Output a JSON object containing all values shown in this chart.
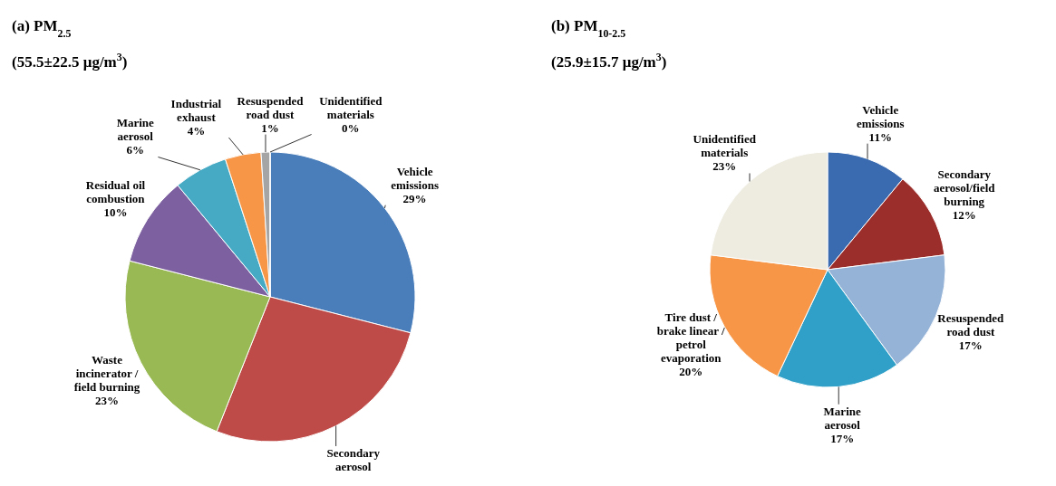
{
  "chart_data": [
    {
      "type": "pie",
      "title": "(a) PM$_{2.5}$",
      "subtitle": "(55.5±22.5 μg/m$^{3}$)",
      "categories": [
        "Vehicle emissions",
        "Secondary aerosol",
        "Waste incinerator / field burning",
        "Residual oil combustion",
        "Marine aerosol",
        "Industrial exhaust",
        "Resuspended road dust",
        "Unidentified materials"
      ],
      "values": [
        29,
        27,
        23,
        10,
        6,
        4,
        1,
        0
      ],
      "colors": [
        "#4a7ebb",
        "#be4b48",
        "#98b954",
        "#7d60a0",
        "#46aac5",
        "#f79646",
        "#a5a5a5",
        "#d9d9d9"
      ],
      "value_labels": [
        "29%",
        null,
        "23%",
        "10%",
        "6%",
        "4%",
        "1%",
        "0%"
      ]
    },
    {
      "type": "pie",
      "title": "(b) PM$_{10-2.5}$",
      "subtitle": "(25.9±15.7 μg/m$^{3}$)",
      "categories": [
        "Vehicle emissions",
        "Secondary aerosol/field burning",
        "Resuspended road dust",
        "Marine aerosol",
        "Tire dust / brake linear / petrol evaporation",
        "Unidentified materials"
      ],
      "values": [
        11,
        12,
        17,
        17,
        20,
        23
      ],
      "colors": [
        "#3a6ab0",
        "#9b2d2a",
        "#95b3d7",
        "#31a0c8",
        "#f79646",
        "#eeece1"
      ],
      "value_labels": [
        "11%",
        "12%",
        "17%",
        "17%",
        "20%",
        "23%"
      ]
    }
  ]
}
